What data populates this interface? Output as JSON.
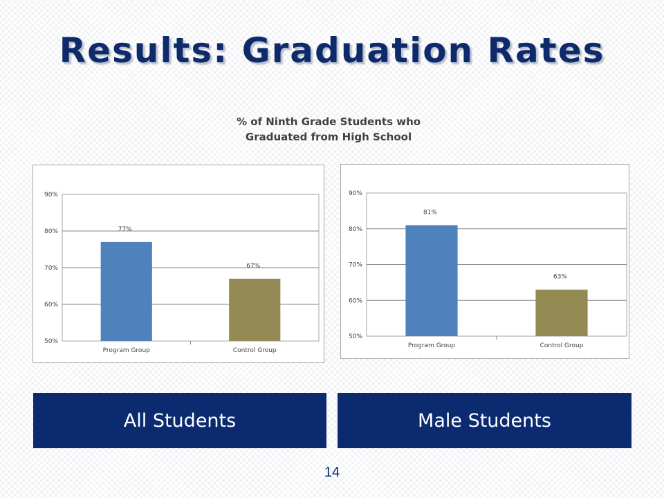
{
  "slide": {
    "title": "Results: Graduation Rates",
    "chart_heading_line1": "% of Ninth Grade Students who",
    "chart_heading_line2": "Graduated from High School",
    "page_number": "14"
  },
  "labels": {
    "all_students": "All Students",
    "male_students": "Male Students"
  },
  "colors": {
    "title": "#0f2a6b",
    "label_bar": "#0b2a6f",
    "program": "#4f81bd",
    "control": "#948a54"
  },
  "chart_data": [
    {
      "type": "bar",
      "title": "",
      "xlabel": "",
      "ylabel": "",
      "categories": [
        "Program Group",
        "Control Group"
      ],
      "values": [
        77,
        67
      ],
      "data_labels": [
        "77%",
        "67%"
      ],
      "ylim": [
        50,
        90
      ],
      "yticks": [
        "50%",
        "60%",
        "70%",
        "80%",
        "90%"
      ],
      "grid": true,
      "legend": "none"
    },
    {
      "type": "bar",
      "title": "",
      "xlabel": "",
      "ylabel": "",
      "categories": [
        "Program Group",
        "Control Group"
      ],
      "values": [
        81,
        63
      ],
      "data_labels": [
        "81%",
        "63%"
      ],
      "ylim": [
        50,
        90
      ],
      "yticks": [
        "50%",
        "60%",
        "70%",
        "80%",
        "90%"
      ],
      "grid": true,
      "legend": "none"
    }
  ]
}
